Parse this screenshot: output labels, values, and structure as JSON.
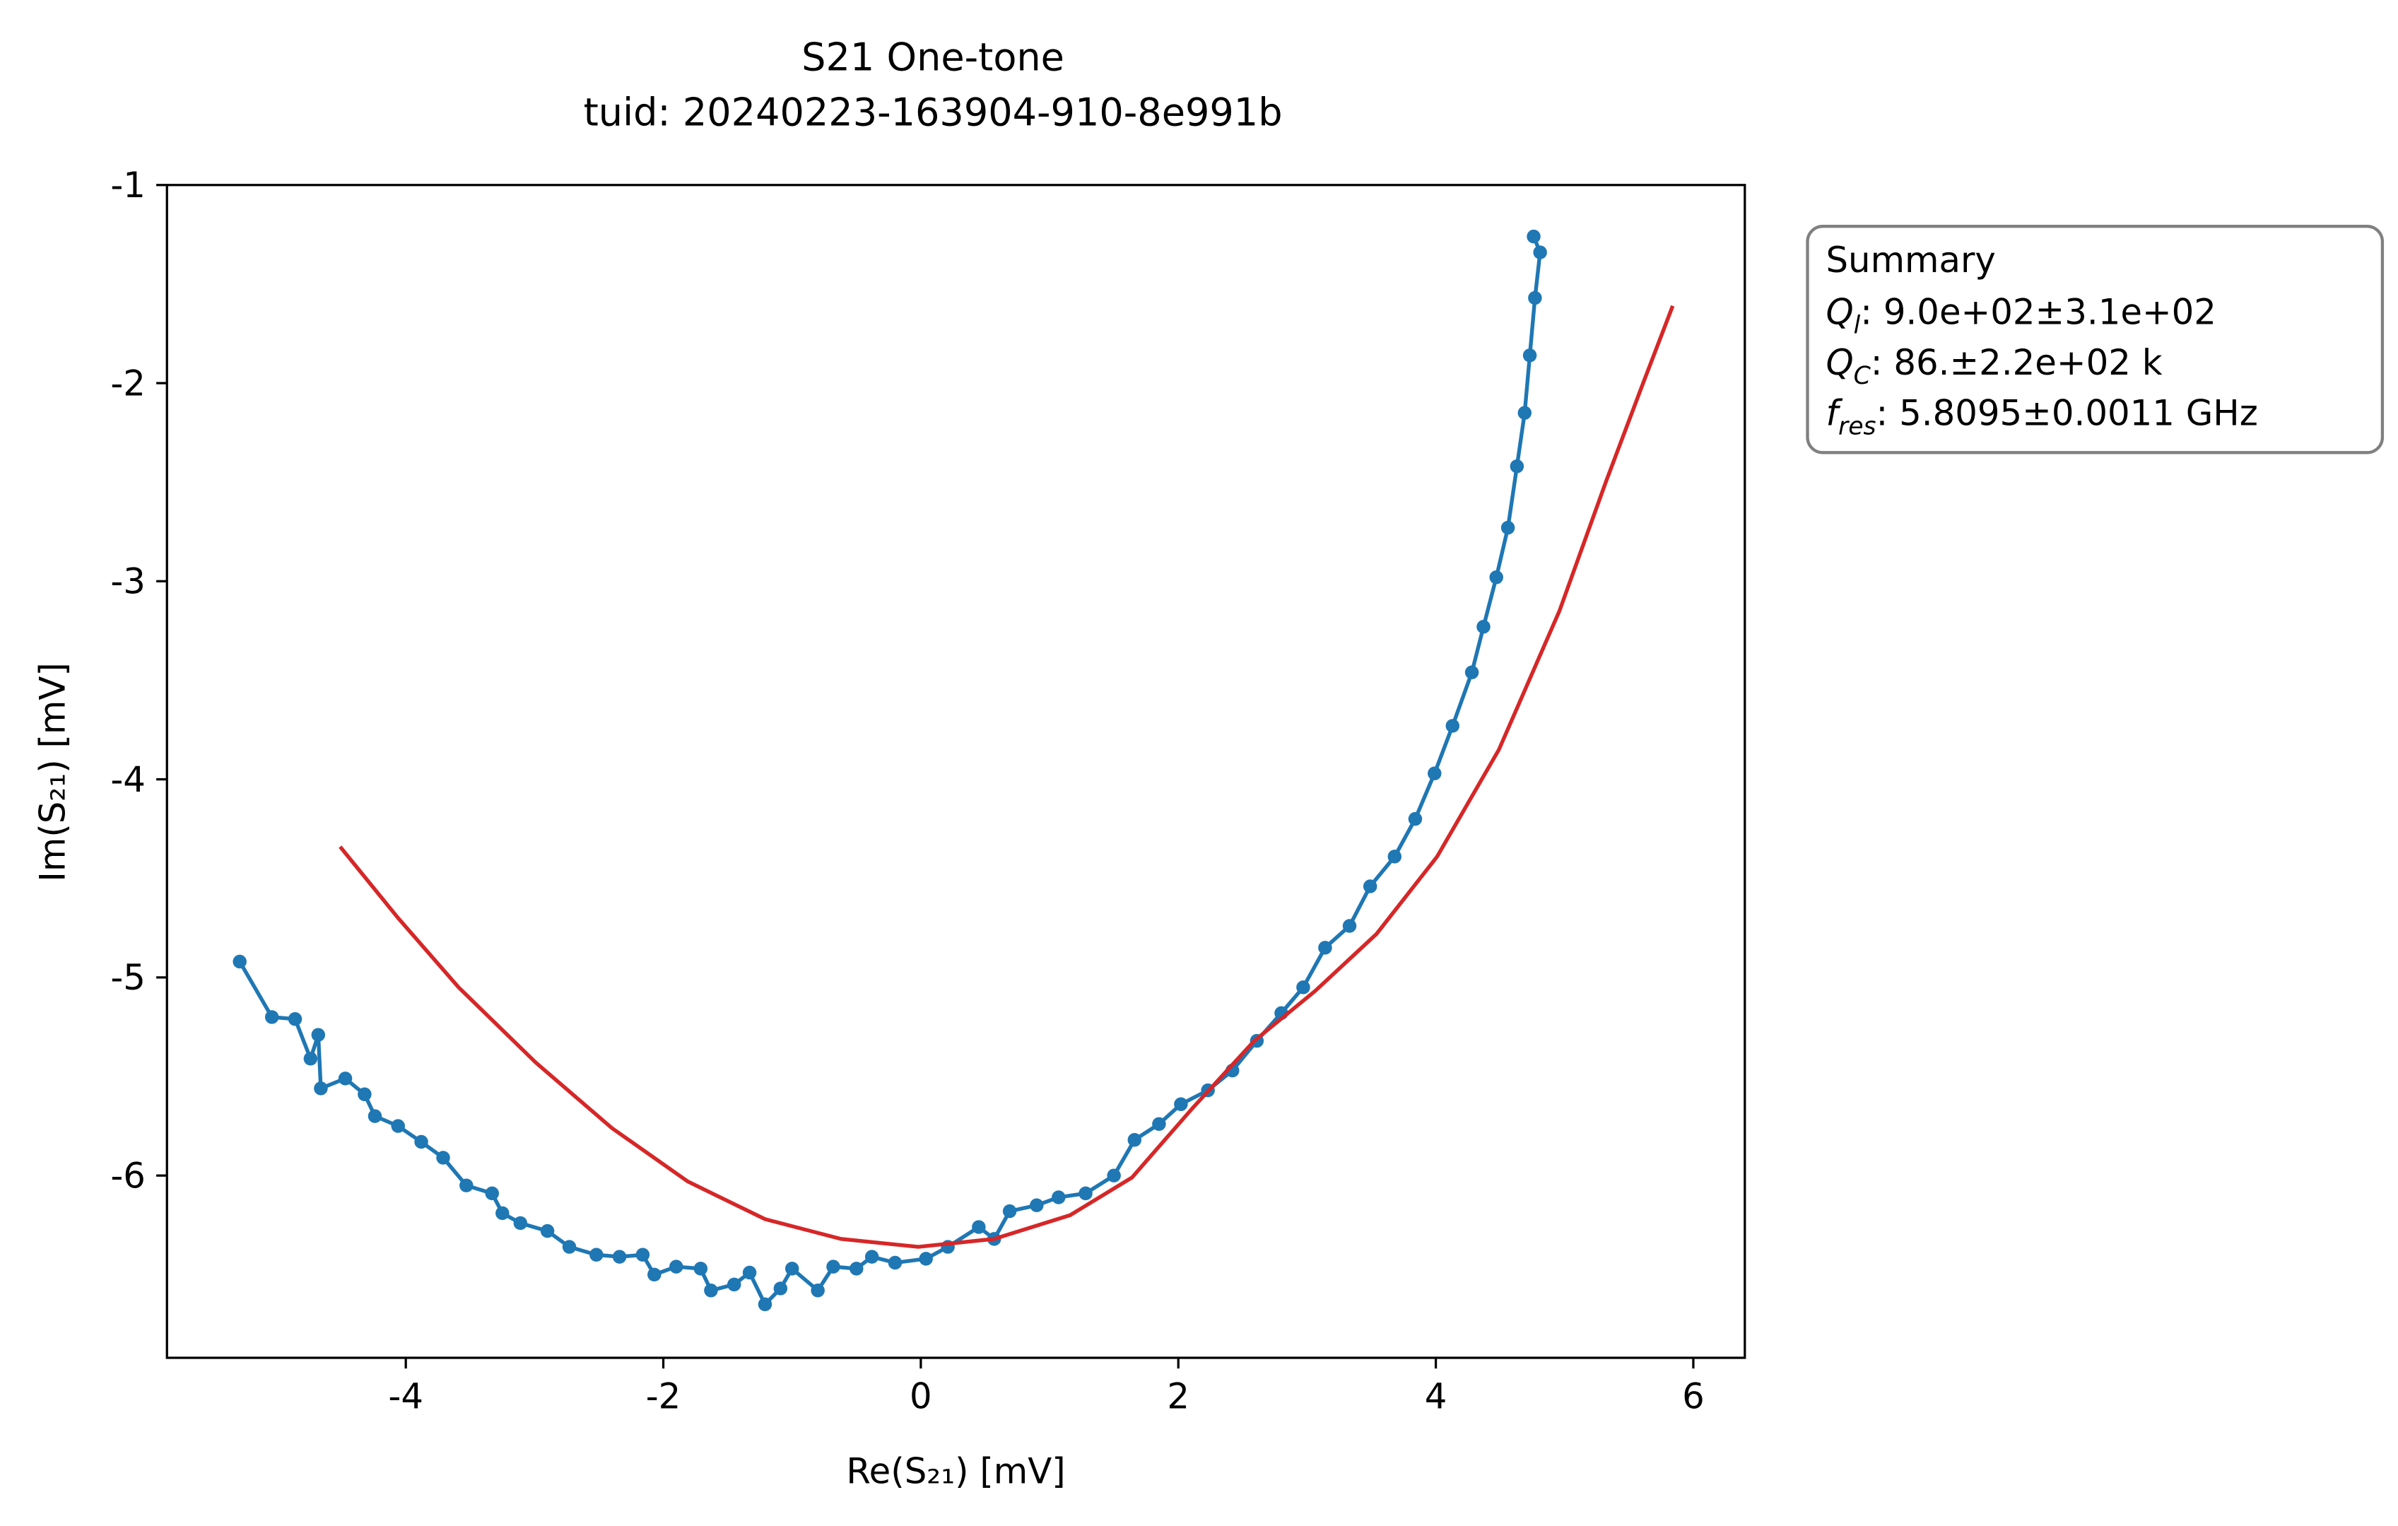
{
  "chart_data": {
    "type": "line",
    "title": "S21 One-tone",
    "subtitle": "tuid: 20240223-163904-910-8e991b",
    "xlabel": "Re(S₂₁) [mV]",
    "ylabel": "Im(S₂₁) [mV]",
    "xlim": [
      -5.855,
      6.4
    ],
    "ylim": [
      -6.92,
      -1
    ],
    "xticks": [
      -4,
      -2,
      0,
      2,
      4,
      6
    ],
    "yticks": [
      -1,
      -2,
      -3,
      -4,
      -5,
      -6
    ],
    "series": [
      {
        "color": "#1f77b4",
        "markers": true,
        "x": [
          -5.29,
          -5.04,
          -4.86,
          -4.74,
          -4.68,
          -4.66,
          -4.47,
          -4.32,
          -4.24,
          -4.06,
          -3.88,
          -3.71,
          -3.53,
          -3.33,
          -3.25,
          -3.11,
          -2.9,
          -2.73,
          -2.52,
          -2.34,
          -2.16,
          -2.07,
          -1.9,
          -1.71,
          -1.63,
          -1.45,
          -1.33,
          -1.21,
          -1.09,
          -1.0,
          -0.8,
          -0.68,
          -0.5,
          -0.38,
          -0.2,
          0.04,
          0.21,
          0.45,
          0.57,
          0.69,
          0.9,
          1.07,
          1.28,
          1.5,
          1.66,
          1.85,
          2.02,
          2.23,
          2.42,
          2.61,
          2.8,
          2.97,
          3.14,
          3.33,
          3.49,
          3.68,
          3.84,
          3.99,
          4.13,
          4.28,
          4.37,
          4.47,
          4.56,
          4.63,
          4.69,
          4.73,
          4.77,
          4.81,
          4.76
        ],
        "values": [
          -4.92,
          -5.2,
          -5.21,
          -5.41,
          -5.29,
          -5.56,
          -5.51,
          -5.59,
          -5.7,
          -5.75,
          -5.83,
          -5.91,
          -6.05,
          -6.09,
          -6.19,
          -6.24,
          -6.28,
          -6.36,
          -6.4,
          -6.41,
          -6.4,
          -6.5,
          -6.46,
          -6.47,
          -6.58,
          -6.55,
          -6.49,
          -6.65,
          -6.57,
          -6.47,
          -6.58,
          -6.46,
          -6.47,
          -6.41,
          -6.44,
          -6.42,
          -6.36,
          -6.26,
          -6.32,
          -6.18,
          -6.15,
          -6.11,
          -6.09,
          -6.0,
          -5.82,
          -5.74,
          -5.64,
          -5.57,
          -5.47,
          -5.32,
          -5.18,
          -5.05,
          -4.85,
          -4.74,
          -4.54,
          -4.39,
          -4.2,
          -3.97,
          -3.73,
          -3.46,
          -3.23,
          -2.98,
          -2.73,
          -2.42,
          -2.15,
          -1.86,
          -1.57,
          -1.34,
          -1.26
        ]
      },
      {
        "color": "#d62728",
        "markers": false,
        "x": [
          -4.51,
          -4.06,
          -3.59,
          -2.99,
          -2.4,
          -1.81,
          -1.21,
          -0.62,
          -0.02,
          0.57,
          1.16,
          1.64,
          2.11,
          2.59,
          3.06,
          3.54,
          4.01,
          4.49,
          4.96,
          5.32,
          5.61,
          5.84
        ],
        "values": [
          -4.34,
          -4.7,
          -5.05,
          -5.43,
          -5.76,
          -6.03,
          -6.22,
          -6.32,
          -6.36,
          -6.32,
          -6.2,
          -6.01,
          -5.66,
          -5.32,
          -5.07,
          -4.78,
          -4.39,
          -3.85,
          -3.15,
          -2.5,
          -2.0,
          -1.61
        ]
      }
    ],
    "summary": {
      "heading": "Summary",
      "lines": [
        {
          "symbol": "Q",
          "sub": "l",
          "text": ": 9.0e+02±3.1e+02"
        },
        {
          "symbol": "Q",
          "sub": "C",
          "text": ": 86.±2.2e+02 k"
        },
        {
          "symbol": "f",
          "sub": "res",
          "text": ": 5.8095±0.0011 GHz"
        }
      ]
    }
  }
}
